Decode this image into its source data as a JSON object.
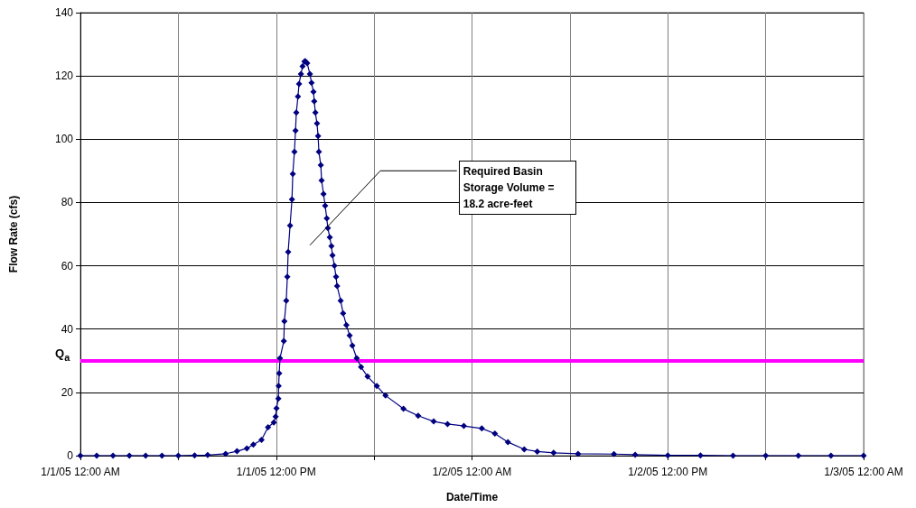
{
  "chart_data": {
    "type": "line",
    "xlabel": "Date/Time",
    "ylabel": "Flow Rate (cfs)",
    "xlim": [
      "--01-01T00:00",
      "--01-03T00:00"
    ],
    "ylim": [
      0,
      140
    ],
    "xticks": [
      {
        "value": "--01-01T00:00",
        "label": "1/1/05 12:00 AM"
      },
      {
        "value": "--01-01T06:00",
        "label": null
      },
      {
        "value": "--01-01T12:00",
        "label": "1/1/05 12:00 PM"
      },
      {
        "value": "--01-01T18:00",
        "label": null
      },
      {
        "value": "--01-02T00:00",
        "label": "1/2/05 12:00 AM"
      },
      {
        "value": "--01-02T06:00",
        "label": null
      },
      {
        "value": "--01-02T12:00",
        "label": "1/2/05 12:00 PM"
      },
      {
        "value": "--01-02T18:00",
        "label": null
      },
      {
        "value": "--01-03T00:00",
        "label": "1/3/05 12:00 AM"
      }
    ],
    "yticks": [
      0,
      20,
      40,
      60,
      80,
      100,
      120,
      140
    ],
    "grid": true,
    "marker": "diamond",
    "line_style": "solid",
    "series": [
      {
        "color": "#000080",
        "x": [
          "--01-01T00:00",
          "--01-01T01:00",
          "--01-01T02:00",
          "--01-01T03:00",
          "--01-01T04:00",
          "--01-01T05:00",
          "--01-01T06:00",
          "--01-01T07:00",
          "--01-01T07:48",
          "--01-01T08:54",
          "--01-01T09:36",
          "--01-01T10:12",
          "--01-01T10:36",
          "--01-01T11:06",
          "--01-01T11:30",
          "--01-01T11:51",
          "--01-01T11:58",
          "--01-01T12:01",
          "--01-01T12:08",
          "--01-01T12:09",
          "--01-01T12:11",
          "--01-01T12:14",
          "--01-01T12:28",
          "--01-01T12:30",
          "--01-01T12:37",
          "--01-01T12:41",
          "--01-01T12:44",
          "--01-01T12:51",
          "--01-01T12:58",
          "--01-01T13:01",
          "--01-01T13:07",
          "--01-01T13:11",
          "--01-01T13:14",
          "--01-01T13:20",
          "--01-01T13:24",
          "--01-01T13:31",
          "--01-01T13:37",
          "--01-01T13:44",
          "--01-01T13:47",
          "--01-01T13:54",
          "--01-01T14:04",
          "--01-01T14:10",
          "--01-01T14:17",
          "--01-01T14:20",
          "--01-01T14:24",
          "--01-01T14:30",
          "--01-01T14:34",
          "--01-01T14:37",
          "--01-01T14:44",
          "--01-01T14:47",
          "--01-01T14:54",
          "--01-01T15:00",
          "--01-01T15:06",
          "--01-01T15:10",
          "--01-01T15:17",
          "--01-01T15:23",
          "--01-01T15:27",
          "--01-01T15:34",
          "--01-01T15:40",
          "--01-01T15:44",
          "--01-01T15:57",
          "--01-01T16:06",
          "--01-01T16:18",
          "--01-01T16:30",
          "--01-01T16:40",
          "--01-01T16:56",
          "--01-01T17:12",
          "--01-01T17:36",
          "--01-01T18:10",
          "--01-01T18:42",
          "--01-01T19:48",
          "--01-01T20:42",
          "--01-01T21:39",
          "--01-01T22:30",
          "--01-01T23:30",
          "--01-02T00:36",
          "--01-02T01:24",
          "--01-02T02:12",
          "--01-02T03:12",
          "--01-02T04:00",
          "--01-02T05:00",
          "--01-02T06:30",
          "--01-02T08:42",
          "--01-02T10:00",
          "--01-02T12:00",
          "--01-02T14:00",
          "--01-02T16:00",
          "--01-02T18:00",
          "--01-02T20:00",
          "--01-02T22:00",
          "--01-03T00:00"
        ],
        "values": [
          0,
          0,
          0,
          0,
          0,
          0,
          0,
          0.1,
          0.2,
          0.6,
          1.4,
          2.3,
          3.5,
          5,
          9,
          10.5,
          12.3,
          15,
          18,
          22,
          26,
          30.8,
          36.2,
          42.5,
          49,
          56.5,
          64.4,
          72.7,
          81,
          89,
          96,
          102.7,
          108.4,
          113.5,
          117.5,
          120.6,
          123,
          124.5,
          124.7,
          124,
          120.6,
          117.8,
          115,
          112,
          108.4,
          105,
          101,
          96,
          91.8,
          87,
          82.7,
          79,
          75,
          71.9,
          69,
          66.2,
          63.3,
          60,
          56.5,
          53.6,
          49,
          45,
          41.3,
          38,
          34.8,
          30.8,
          28,
          25,
          22,
          19,
          14.8,
          12.6,
          10.8,
          10,
          9.4,
          8.6,
          7,
          4.3,
          2,
          1.3,
          0.9,
          0.6,
          0.5,
          0.3,
          0.1,
          0.1,
          0,
          0,
          0,
          0,
          0
        ]
      }
    ],
    "ref_lines": [
      {
        "axis": "y",
        "value": 30,
        "label": "Q$_{a}$",
        "color": "#ff00ff"
      }
    ],
    "annotations": [
      "Required Basin Storage Volume = 18.2 acre-feet"
    ]
  }
}
